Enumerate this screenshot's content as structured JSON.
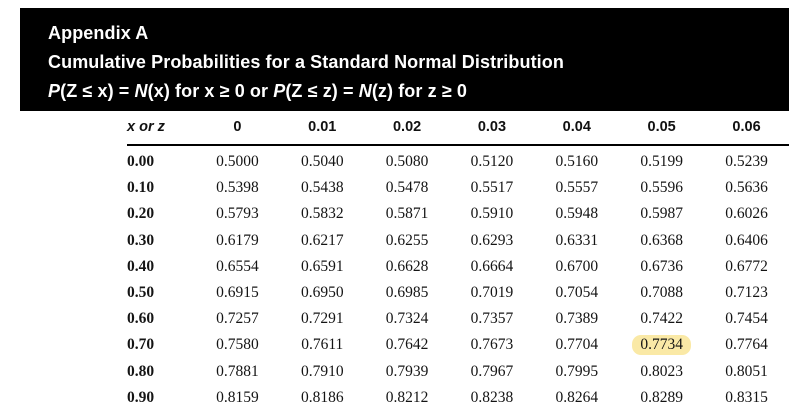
{
  "banner": {
    "title": "Appendix A",
    "subtitle": "Cumulative Probabilities for a Standard Normal Distribution",
    "formula_parts": {
      "p1": "P",
      "p2": "(Z ≤ x) = ",
      "p3": "N",
      "p4": "(x) for x ≥ 0 or ",
      "p5": "P",
      "p6": "(Z ≤ z) = ",
      "p7": "N",
      "p8": "(z) for z ≥ 0"
    },
    "bg_color": "#000000",
    "text_color": "#ffffff"
  },
  "table": {
    "corner_header": "x or z",
    "column_headers": [
      "0",
      "0.01",
      "0.02",
      "0.03",
      "0.04",
      "0.05",
      "0.06"
    ],
    "rows": [
      {
        "label": "0.00",
        "values": [
          "0.5000",
          "0.5040",
          "0.5080",
          "0.5120",
          "0.5160",
          "0.5199",
          "0.5239"
        ]
      },
      {
        "label": "0.10",
        "values": [
          "0.5398",
          "0.5438",
          "0.5478",
          "0.5517",
          "0.5557",
          "0.5596",
          "0.5636"
        ]
      },
      {
        "label": "0.20",
        "values": [
          "0.5793",
          "0.5832",
          "0.5871",
          "0.5910",
          "0.5948",
          "0.5987",
          "0.6026"
        ]
      },
      {
        "label": "0.30",
        "values": [
          "0.6179",
          "0.6217",
          "0.6255",
          "0.6293",
          "0.6331",
          "0.6368",
          "0.6406"
        ]
      },
      {
        "label": "0.40",
        "values": [
          "0.6554",
          "0.6591",
          "0.6628",
          "0.6664",
          "0.6700",
          "0.6736",
          "0.6772"
        ]
      },
      {
        "label": "0.50",
        "values": [
          "0.6915",
          "0.6950",
          "0.6985",
          "0.7019",
          "0.7054",
          "0.7088",
          "0.7123"
        ]
      },
      {
        "label": "0.60",
        "values": [
          "0.7257",
          "0.7291",
          "0.7324",
          "0.7357",
          "0.7389",
          "0.7422",
          "0.7454"
        ]
      },
      {
        "label": "0.70",
        "values": [
          "0.7580",
          "0.7611",
          "0.7642",
          "0.7673",
          "0.7704",
          "0.7734",
          "0.7764"
        ]
      },
      {
        "label": "0.80",
        "values": [
          "0.7881",
          "0.7910",
          "0.7939",
          "0.7967",
          "0.7995",
          "0.8023",
          "0.8051"
        ]
      },
      {
        "label": "0.90",
        "values": [
          "0.8159",
          "0.8186",
          "0.8212",
          "0.8238",
          "0.8264",
          "0.8289",
          "0.8315"
        ]
      }
    ],
    "highlight": {
      "row_index": 7,
      "col_index": 5,
      "row_label": "0.70",
      "column_header": "0.05",
      "value": "0.7734",
      "color": "#FAE9A6"
    }
  }
}
